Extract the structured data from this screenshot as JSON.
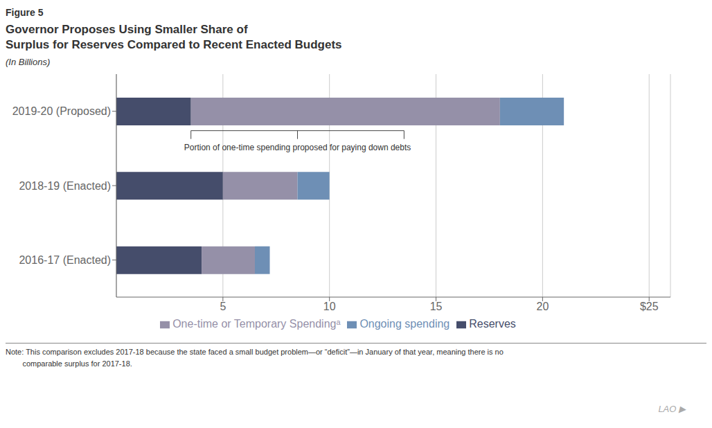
{
  "chart_data": {
    "type": "bar",
    "orientation": "horizontal",
    "stacked": true,
    "figure_label": "Figure 5",
    "title": "Governor Proposes Using Smaller Share of\nSurplus for Reserves Compared to Recent Enacted Budgets",
    "subtitle": "(In Billions)",
    "categories": [
      "2016-17 (Enacted)",
      "2018-19 (Enacted)",
      "2019-20 (Proposed)"
    ],
    "series": [
      {
        "name": "Reserves",
        "color": "#454d6b",
        "values": [
          4.0,
          5.0,
          3.5
        ]
      },
      {
        "name": "One-time or Temporary Spendingᵃ",
        "color": "#9590a8",
        "values": [
          2.5,
          3.5,
          14.5
        ]
      },
      {
        "name": "Ongoing spending",
        "color": "#6e8fb5",
        "values": [
          0.7,
          1.5,
          3.0
        ]
      }
    ],
    "xlim": [
      0,
      26
    ],
    "xticks": [
      5,
      10,
      15,
      20,
      {
        "value": 25,
        "label": "$25"
      }
    ],
    "grid": true,
    "legend": "bottom",
    "annotations": [
      {
        "text": "Portion of one-time spending proposed for paying down debts",
        "category": "2019-20 (Proposed)",
        "x_start": 3.5,
        "x_end": 13.5
      }
    ],
    "note": [
      "Note: This comparison excludes 2017-18 because the state faced a small budget problem—or “deficit”—in January of that year, meaning there is no",
      "        comparable surplus for 2017-18."
    ],
    "watermark": "LAO ▶"
  }
}
